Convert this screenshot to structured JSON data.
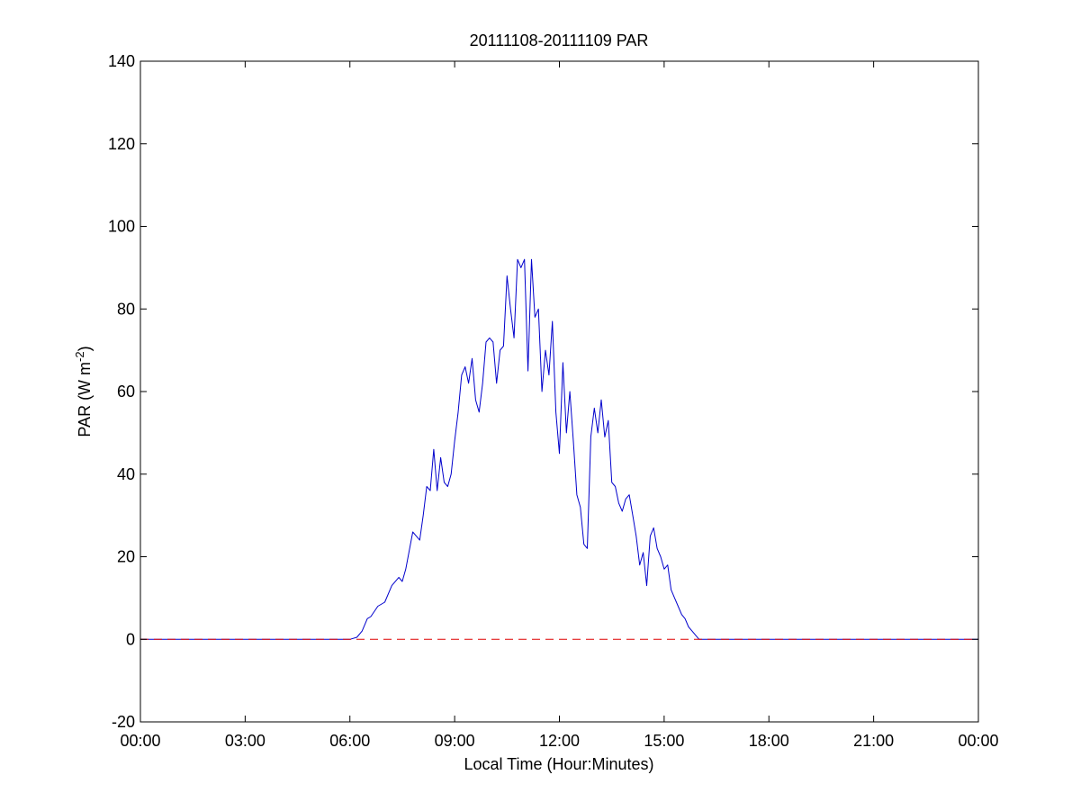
{
  "chart_data": {
    "type": "line",
    "title": "20111108-20111109 PAR",
    "xlabel": "Local Time (Hour:Minutes)",
    "ylabel": {
      "text": "PAR (W m",
      "superscript": "-2",
      "close": ")"
    },
    "xlim": [
      0,
      24
    ],
    "ylim": [
      -20,
      140
    ],
    "x_ticks": [
      {
        "value": 0,
        "label": "00:00"
      },
      {
        "value": 3,
        "label": "03:00"
      },
      {
        "value": 6,
        "label": "06:00"
      },
      {
        "value": 9,
        "label": "09:00"
      },
      {
        "value": 12,
        "label": "12:00"
      },
      {
        "value": 15,
        "label": "15:00"
      },
      {
        "value": 18,
        "label": "18:00"
      },
      {
        "value": 21,
        "label": "21:00"
      },
      {
        "value": 24,
        "label": "00:00"
      }
    ],
    "y_ticks": [
      {
        "value": -20,
        "label": "-20"
      },
      {
        "value": 0,
        "label": "0"
      },
      {
        "value": 20,
        "label": "20"
      },
      {
        "value": 40,
        "label": "40"
      },
      {
        "value": 60,
        "label": "60"
      },
      {
        "value": 80,
        "label": "80"
      },
      {
        "value": 100,
        "label": "100"
      },
      {
        "value": 120,
        "label": "120"
      },
      {
        "value": 140,
        "label": "140"
      }
    ],
    "grid": false,
    "series": [
      {
        "style": "solid",
        "color": "#0000cc",
        "x": [
          0,
          6.0,
          6.2,
          6.35,
          6.5,
          6.6,
          6.8,
          7.0,
          7.2,
          7.4,
          7.5,
          7.6,
          7.8,
          7.9,
          8.0,
          8.1,
          8.2,
          8.3,
          8.4,
          8.5,
          8.6,
          8.7,
          8.8,
          8.9,
          9.0,
          9.1,
          9.2,
          9.3,
          9.4,
          9.5,
          9.6,
          9.7,
          9.8,
          9.9,
          10.0,
          10.1,
          10.2,
          10.3,
          10.4,
          10.5,
          10.6,
          10.7,
          10.8,
          10.9,
          11.0,
          11.1,
          11.2,
          11.3,
          11.4,
          11.5,
          11.6,
          11.7,
          11.8,
          11.9,
          12.0,
          12.1,
          12.2,
          12.3,
          12.4,
          12.5,
          12.6,
          12.7,
          12.8,
          12.9,
          13.0,
          13.1,
          13.2,
          13.3,
          13.4,
          13.5,
          13.6,
          13.7,
          13.8,
          13.9,
          14.0,
          14.1,
          14.2,
          14.3,
          14.4,
          14.5,
          14.6,
          14.7,
          14.8,
          14.9,
          15.0,
          15.1,
          15.2,
          15.3,
          15.4,
          15.5,
          15.6,
          15.7,
          15.8,
          15.9,
          16.0,
          16.2,
          16.4,
          16.6,
          16.8,
          17.0,
          17.2,
          17.4,
          24
        ],
        "y": [
          0,
          0,
          0.5,
          2,
          5,
          5.5,
          8,
          9,
          13,
          15,
          14,
          17,
          26,
          25,
          24,
          30,
          37,
          36,
          46,
          36,
          44,
          38,
          37,
          40,
          48,
          55,
          64,
          66,
          62,
          68,
          58,
          55,
          62,
          72,
          73,
          72,
          62,
          70,
          71,
          88,
          80,
          73,
          92,
          90,
          92,
          65,
          92,
          78,
          80,
          60,
          70,
          64,
          77,
          55,
          45,
          67,
          50,
          60,
          48,
          35,
          32,
          23,
          22,
          49,
          56,
          50,
          58,
          49,
          53,
          38,
          37,
          33,
          31,
          34,
          35,
          30,
          25,
          18,
          21,
          13,
          25,
          27,
          22,
          20,
          17,
          18,
          12,
          10,
          8,
          6,
          5,
          3,
          2,
          1,
          0,
          0,
          0,
          0,
          0,
          0,
          0,
          0,
          0
        ]
      },
      {
        "style": "dashed",
        "color": "#dd0000",
        "x": [
          0,
          24
        ],
        "y": [
          0,
          0
        ]
      }
    ]
  }
}
